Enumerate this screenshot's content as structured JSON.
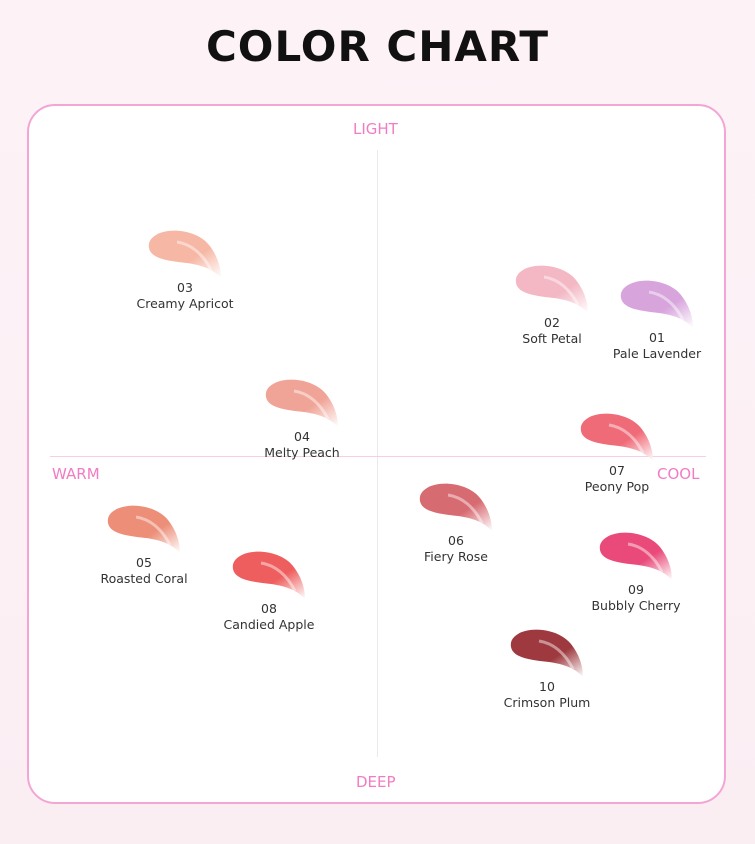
{
  "title": "COLOR CHART",
  "axes": {
    "top": "LIGHT",
    "bottom": "DEEP",
    "left": "WARM",
    "right": "COOL"
  },
  "accent_color": "#f27cc3",
  "shades": [
    {
      "number": "03",
      "name": "Creamy Apricot",
      "color": "#f6b7a4"
    },
    {
      "number": "02",
      "name": "Soft Petal",
      "color": "#f3b8c4"
    },
    {
      "number": "01",
      "name": "Pale Lavender",
      "color": "#d7a4dc"
    },
    {
      "number": "04",
      "name": "Melty Peach",
      "color": "#f0a497"
    },
    {
      "number": "07",
      "name": "Peony Pop",
      "color": "#f06b78"
    },
    {
      "number": "05",
      "name": "Roasted Coral",
      "color": "#ec8e78"
    },
    {
      "number": "06",
      "name": "Fiery Rose",
      "color": "#d76b72"
    },
    {
      "number": "08",
      "name": "Candied Apple",
      "color": "#ef5e5e"
    },
    {
      "number": "09",
      "name": "Bubbly Cherry",
      "color": "#e94a79"
    },
    {
      "number": "10",
      "name": "Crimson Plum",
      "color": "#9e3a3f"
    }
  ]
}
